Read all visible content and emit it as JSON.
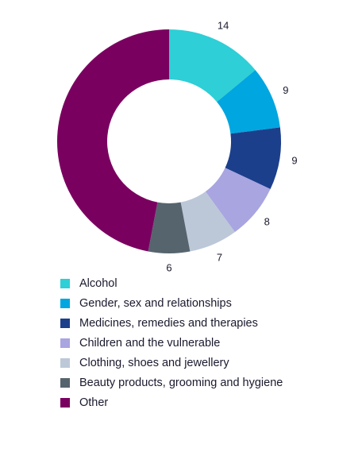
{
  "chart_data": {
    "type": "donut",
    "categories": [
      "Alcohol",
      "Gender, sex and relationships",
      "Medicines, remedies and therapies",
      "Children and the vulnerable",
      "Clothing, shoes and jewellery",
      "Beauty products, grooming and hygiene",
      "Other"
    ],
    "values": [
      14,
      9,
      9,
      8,
      7,
      6,
      47
    ],
    "value_labels": [
      "14",
      "9",
      "9",
      "8",
      "7",
      "6",
      null
    ],
    "colors": [
      "#2ecfd6",
      "#00a6e0",
      "#1c3f8c",
      "#a8a5e0",
      "#bcc8d8",
      "#56646e",
      "#7a0060"
    ]
  }
}
